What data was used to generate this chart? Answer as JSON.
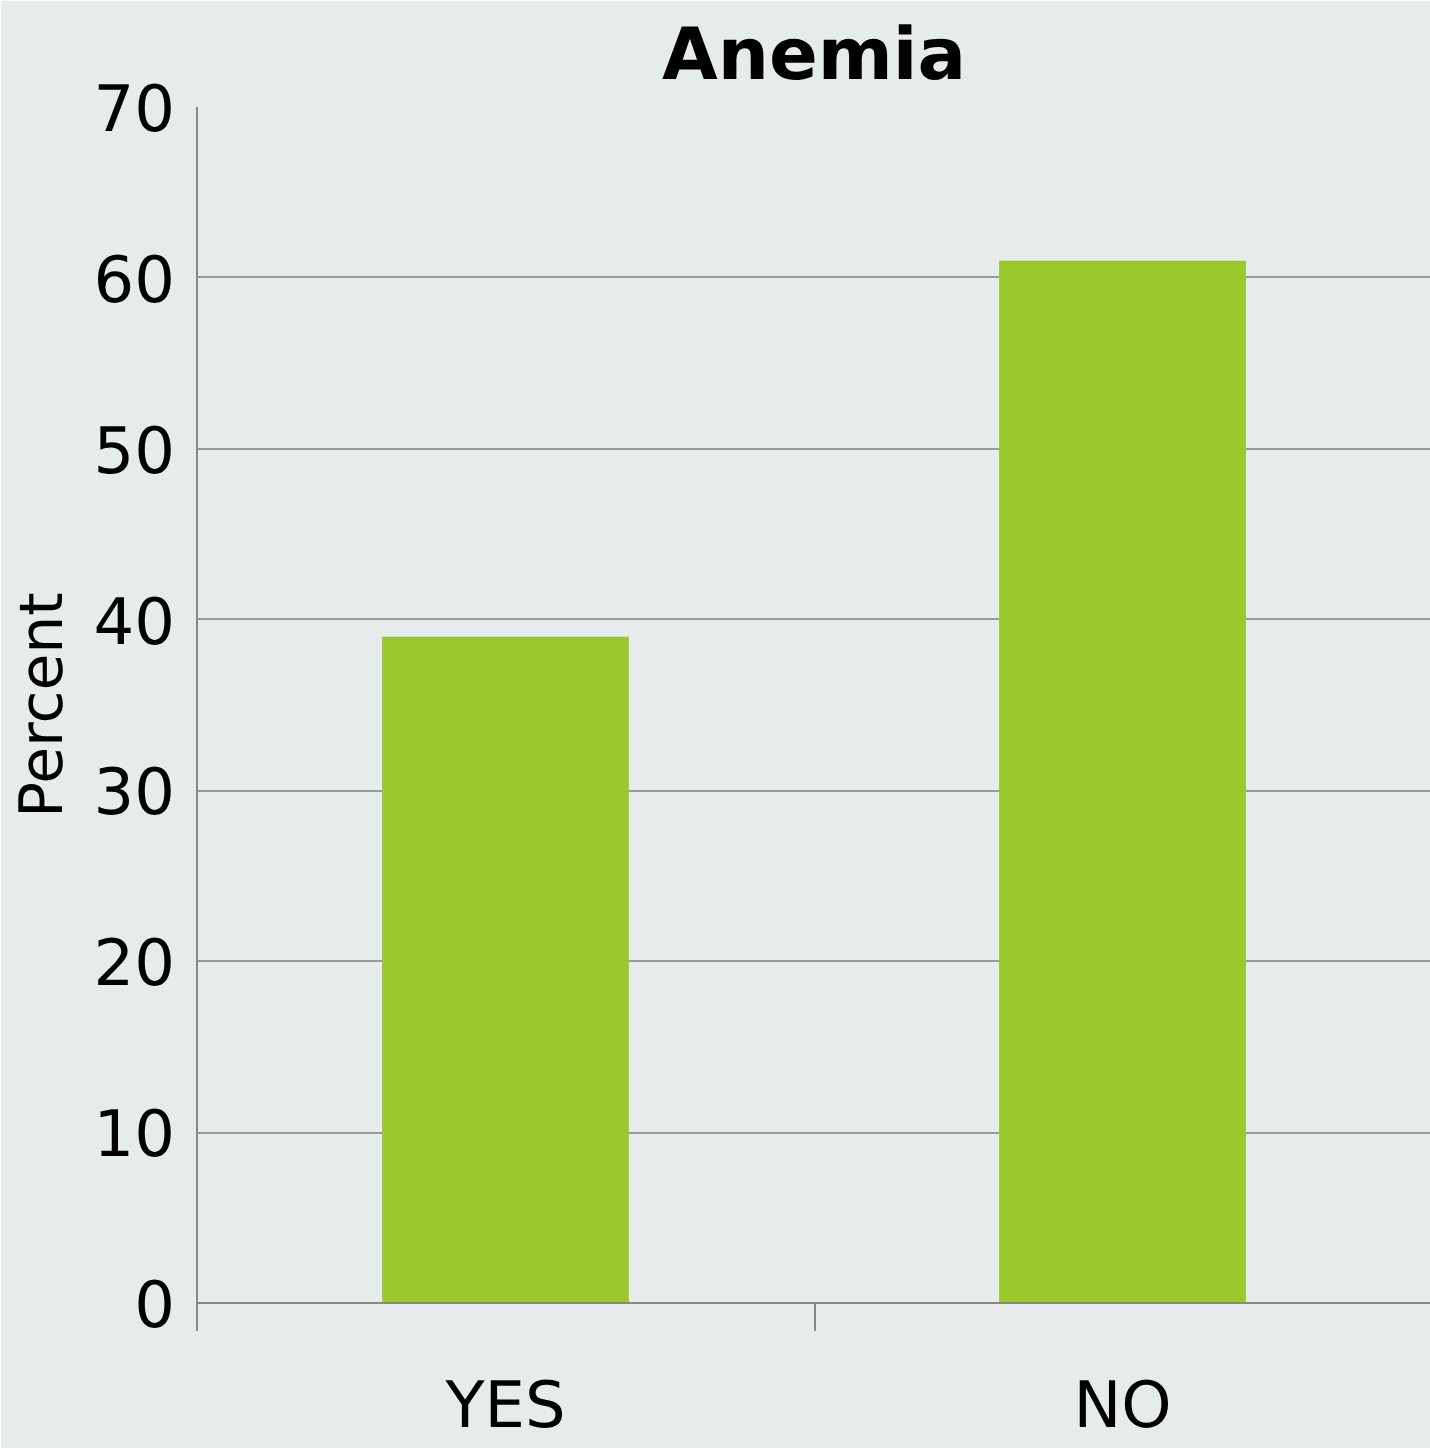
{
  "chart_data": {
    "type": "bar",
    "title": "Anemia",
    "ylabel": "Percent",
    "categories": [
      "YES",
      "NO"
    ],
    "values": [
      39,
      61
    ],
    "color": "#9bc82a",
    "ylim": [
      0,
      70
    ],
    "yticks": [
      0,
      10,
      20,
      30,
      40,
      50,
      60,
      70
    ],
    "grid": "y"
  }
}
